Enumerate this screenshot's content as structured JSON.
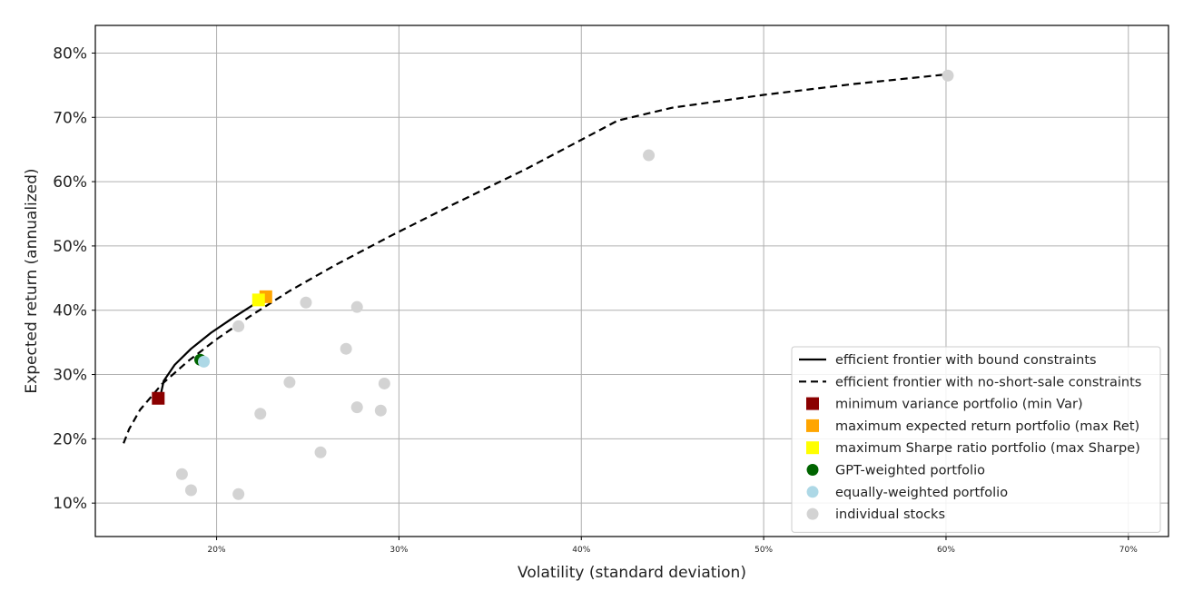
{
  "chart_data": {
    "type": "scatter",
    "title": "",
    "xlabel": "Volatility (standard deviation)",
    "ylabel": "Expected return (annualized)",
    "xlim": [
      0.1335,
      0.722
    ],
    "ylim": [
      0.048,
      0.843
    ],
    "x_ticks": [
      0.2,
      0.3,
      0.4,
      0.5,
      0.6,
      0.7
    ],
    "x_tick_labels": [
      "20%",
      "30%",
      "40%",
      "50%",
      "60%",
      "70%"
    ],
    "y_ticks": [
      0.1,
      0.2,
      0.3,
      0.4,
      0.5,
      0.6,
      0.7,
      0.8
    ],
    "y_tick_labels": [
      "10%",
      "20%",
      "30%",
      "40%",
      "50%",
      "60%",
      "70%",
      "80%"
    ],
    "grid": true,
    "legend_position": "lower-right",
    "series": [
      {
        "name": "efficient frontier with bound constraints",
        "kind": "line",
        "style": "solid",
        "color": "#000000",
        "x": [
          0.169,
          0.171,
          0.177,
          0.186,
          0.197,
          0.21,
          0.227
        ],
        "y": [
          0.264,
          0.29,
          0.315,
          0.34,
          0.365,
          0.39,
          0.421
        ]
      },
      {
        "name": "efficient frontier with no-short-sale constraints",
        "kind": "line",
        "style": "dashed",
        "color": "#000000",
        "x": [
          0.149,
          0.152,
          0.158,
          0.17,
          0.184,
          0.2,
          0.218,
          0.24,
          0.265,
          0.295,
          0.33,
          0.37,
          0.42,
          0.45,
          0.5,
          0.55,
          0.601
        ],
        "y": [
          0.193,
          0.215,
          0.245,
          0.285,
          0.32,
          0.355,
          0.39,
          0.43,
          0.47,
          0.515,
          0.565,
          0.62,
          0.695,
          0.715,
          0.735,
          0.752,
          0.767
        ]
      },
      {
        "name": "minimum variance portfolio (min Var)",
        "kind": "square",
        "color": "#8b0000",
        "x": [
          0.168
        ],
        "y": [
          0.263
        ]
      },
      {
        "name": "maximum expected return portfolio (max Ret)",
        "kind": "square",
        "color": "#ffa500",
        "x": [
          0.227
        ],
        "y": [
          0.421
        ]
      },
      {
        "name": "maximum Sharpe ratio portfolio (max Sharpe)",
        "kind": "square",
        "color": "#ffff00",
        "x": [
          0.223
        ],
        "y": [
          0.416
        ]
      },
      {
        "name": "GPT-weighted portfolio",
        "kind": "circle",
        "color": "#006400",
        "x": [
          0.191
        ],
        "y": [
          0.323
        ]
      },
      {
        "name": "equally-weighted portfolio",
        "kind": "circle",
        "color": "#add8e6",
        "x": [
          0.193
        ],
        "y": [
          0.32
        ]
      },
      {
        "name": "individual stocks",
        "kind": "circle",
        "color": "#d3d3d3",
        "x": [
          0.601,
          0.437,
          0.249,
          0.277,
          0.212,
          0.271,
          0.292,
          0.24,
          0.277,
          0.29,
          0.224,
          0.257,
          0.181,
          0.186,
          0.212
        ],
        "y": [
          0.765,
          0.641,
          0.412,
          0.405,
          0.375,
          0.34,
          0.286,
          0.288,
          0.249,
          0.244,
          0.239,
          0.179,
          0.145,
          0.12,
          0.114
        ]
      }
    ]
  }
}
